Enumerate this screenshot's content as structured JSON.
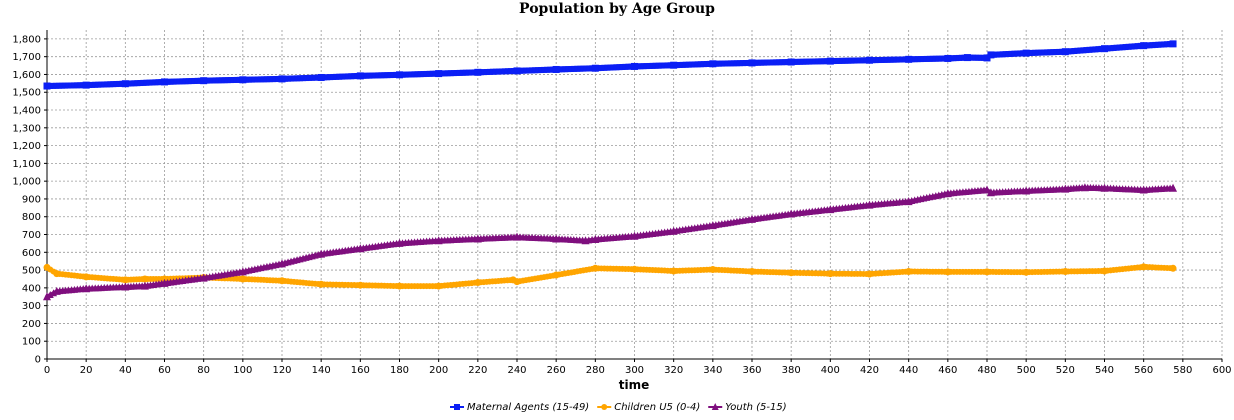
{
  "chart_data": {
    "type": "line",
    "title": "Population by Age Group",
    "xlabel": "time",
    "ylabel": "",
    "xlim": [
      0,
      600
    ],
    "ylim": [
      0,
      1850
    ],
    "x_ticks": [
      0,
      20,
      40,
      60,
      80,
      100,
      120,
      140,
      160,
      180,
      200,
      220,
      240,
      260,
      280,
      300,
      320,
      340,
      360,
      380,
      400,
      420,
      440,
      460,
      480,
      500,
      520,
      540,
      560,
      580,
      600
    ],
    "y_ticks": [
      0,
      100,
      200,
      300,
      400,
      500,
      600,
      700,
      800,
      900,
      1000,
      1100,
      1200,
      1300,
      1400,
      1500,
      1600,
      1700,
      1800
    ],
    "y_tick_labels": [
      "0",
      "100",
      "200",
      "300",
      "400",
      "500",
      "600",
      "700",
      "800",
      "900",
      "1,000",
      "1,100",
      "1,200",
      "1,300",
      "1,400",
      "1,500",
      "1,600",
      "1,700",
      "1,800"
    ],
    "grid": true,
    "legend_position": "bottom-center",
    "series": [
      {
        "name": "Maternal Agents (15-49)",
        "color": "#0b1ff5",
        "marker": "square",
        "x": [
          0,
          20,
          40,
          60,
          80,
          100,
          120,
          140,
          160,
          180,
          200,
          220,
          240,
          260,
          280,
          300,
          320,
          340,
          360,
          380,
          400,
          420,
          440,
          460,
          470,
          480,
          482,
          500,
          520,
          540,
          560,
          575
        ],
        "y": [
          1535,
          1540,
          1548,
          1558,
          1565,
          1570,
          1575,
          1583,
          1592,
          1598,
          1605,
          1612,
          1620,
          1628,
          1635,
          1645,
          1652,
          1660,
          1665,
          1670,
          1675,
          1680,
          1685,
          1690,
          1695,
          1693,
          1710,
          1720,
          1728,
          1745,
          1762,
          1772
        ]
      },
      {
        "name": "Children U5 (0-4)",
        "color": "#ffa500",
        "marker": "circle",
        "x": [
          0,
          5,
          20,
          40,
          50,
          60,
          80,
          100,
          120,
          140,
          160,
          180,
          200,
          220,
          238,
          240,
          260,
          280,
          300,
          320,
          340,
          360,
          380,
          400,
          420,
          440,
          460,
          480,
          500,
          520,
          540,
          560,
          575
        ],
        "y": [
          515,
          480,
          462,
          445,
          450,
          450,
          458,
          450,
          440,
          420,
          415,
          410,
          410,
          430,
          445,
          435,
          472,
          510,
          505,
          495,
          503,
          492,
          485,
          480,
          478,
          492,
          490,
          490,
          488,
          492,
          495,
          518,
          510
        ]
      },
      {
        "name": "Youth (5-15)",
        "color": "#7f0f7e",
        "marker": "triangle",
        "x": [
          0,
          5,
          20,
          40,
          50,
          60,
          80,
          100,
          120,
          140,
          160,
          180,
          200,
          220,
          240,
          260,
          275,
          280,
          300,
          320,
          340,
          360,
          380,
          400,
          420,
          440,
          460,
          480,
          482,
          500,
          520,
          530,
          540,
          560,
          575
        ],
        "y": [
          350,
          380,
          395,
          405,
          410,
          425,
          455,
          490,
          535,
          590,
          620,
          650,
          665,
          675,
          685,
          675,
          665,
          672,
          690,
          718,
          750,
          785,
          815,
          840,
          865,
          885,
          930,
          950,
          935,
          945,
          955,
          963,
          960,
          950,
          960
        ]
      }
    ]
  }
}
